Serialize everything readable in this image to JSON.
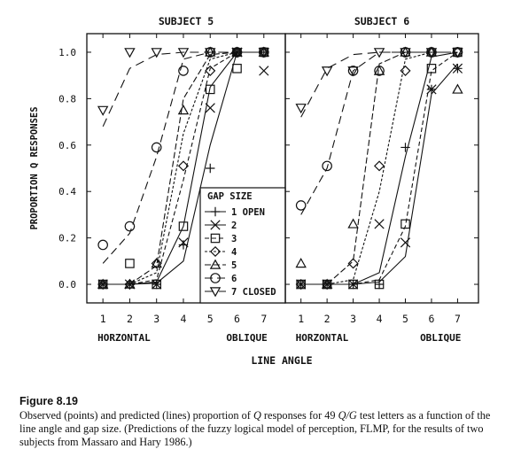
{
  "chart_data": [
    {
      "type": "line",
      "title": "SUBJECT 5",
      "xlabel": "LINE ANGLE",
      "ylabel": "PROPORTION Q RESPONSES",
      "x_ticks": [
        1,
        2,
        3,
        4,
        5,
        6,
        7
      ],
      "x_end_labels": {
        "left": "HORZONTAL",
        "right": "OBLIQUE"
      },
      "y_ticks": [
        "0.0",
        "0.2",
        "0.4",
        "0.6",
        "0.8",
        "1.0"
      ],
      "xlim": [
        0.4,
        7.8
      ],
      "ylim": [
        -0.08,
        1.08
      ],
      "legend": {
        "title": "GAP SIZE",
        "placement": "bottom-right",
        "entries": [
          "1 OPEN",
          "2",
          "3",
          "4",
          "5",
          "6",
          "7 CLOSED"
        ]
      },
      "series": [
        {
          "name": "1",
          "marker": "plus",
          "observed": [
            0.0,
            0.0,
            0.0,
            0.17,
            0.5,
            1.0,
            1.0
          ],
          "predicted": [
            0.0,
            0.0,
            0.005,
            0.1,
            0.6,
            1.0,
            1.0
          ]
        },
        {
          "name": "2",
          "marker": "cross",
          "observed": [
            0.0,
            0.0,
            0.0,
            0.18,
            0.76,
            1.0,
            0.92
          ],
          "predicted": [
            0.0,
            0.0,
            0.01,
            0.25,
            0.85,
            1.0,
            1.0
          ]
        },
        {
          "name": "3",
          "marker": "square",
          "observed": [
            0.0,
            0.09,
            0.0,
            0.25,
            0.84,
            0.93,
            1.0
          ],
          "predicted": [
            0.0,
            0.0,
            0.02,
            0.45,
            0.93,
            1.0,
            1.0
          ]
        },
        {
          "name": "4",
          "marker": "diamond",
          "observed": [
            0.0,
            0.0,
            0.09,
            0.51,
            0.92,
            1.0,
            1.0
          ],
          "predicted": [
            0.0,
            0.0,
            0.05,
            0.65,
            0.97,
            1.0,
            1.0
          ]
        },
        {
          "name": "5",
          "marker": "triangle-up",
          "observed": [
            0.0,
            0.0,
            0.09,
            0.75,
            1.0,
            1.0,
            1.0
          ],
          "predicted": [
            0.0,
            0.0,
            0.08,
            0.8,
            0.99,
            1.0,
            1.0
          ]
        },
        {
          "name": "6",
          "marker": "circle",
          "observed": [
            0.17,
            0.25,
            0.59,
            0.92,
            1.0,
            1.0,
            1.0
          ],
          "predicted": [
            0.09,
            0.22,
            0.55,
            0.97,
            1.0,
            1.0,
            1.0
          ]
        },
        {
          "name": "7",
          "marker": "triangle-down",
          "observed": [
            0.75,
            1.0,
            1.0,
            1.0,
            1.0,
            1.0,
            1.0
          ],
          "predicted": [
            0.68,
            0.93,
            0.99,
            1.0,
            1.0,
            1.0,
            1.0
          ]
        }
      ]
    },
    {
      "type": "line",
      "title": "SUBJECT 6",
      "xlabel": "LINE ANGLE",
      "x_ticks": [
        1,
        2,
        3,
        4,
        5,
        6,
        7
      ],
      "x_end_labels": {
        "left": "HORZONTAL",
        "right": "OBLIQUE"
      },
      "xlim": [
        0.4,
        7.8
      ],
      "ylim": [
        -0.08,
        1.08
      ],
      "series": [
        {
          "name": "1",
          "marker": "plus",
          "observed": [
            0.0,
            0.0,
            0.0,
            0.0,
            0.59,
            0.84,
            0.93
          ],
          "predicted": [
            0.0,
            0.0,
            0.0,
            0.05,
            0.55,
            0.98,
            1.0
          ]
        },
        {
          "name": "2",
          "marker": "cross",
          "observed": [
            0.0,
            0.0,
            0.0,
            0.26,
            0.18,
            0.84,
            0.93
          ],
          "predicted": [
            0.0,
            0.0,
            0.0,
            0.01,
            0.12,
            0.82,
            0.95
          ]
        },
        {
          "name": "3",
          "marker": "square",
          "observed": [
            0.0,
            0.0,
            0.0,
            0.0,
            0.26,
            0.93,
            1.0
          ],
          "predicted": [
            0.0,
            0.0,
            0.0,
            0.02,
            0.25,
            0.92,
            1.0
          ]
        },
        {
          "name": "4",
          "marker": "diamond",
          "observed": [
            0.0,
            0.0,
            0.09,
            0.51,
            0.92,
            1.0,
            1.0
          ],
          "predicted": [
            0.0,
            0.0,
            0.02,
            0.4,
            0.97,
            1.0,
            1.0
          ]
        },
        {
          "name": "5",
          "marker": "triangle-up",
          "observed": [
            0.09,
            0.0,
            0.26,
            0.92,
            1.0,
            1.0,
            0.84
          ],
          "predicted": [
            0.0,
            0.0,
            0.1,
            0.95,
            1.0,
            1.0,
            1.0
          ]
        },
        {
          "name": "6",
          "marker": "circle",
          "observed": [
            0.34,
            0.51,
            0.92,
            0.92,
            1.0,
            1.0,
            1.0
          ],
          "predicted": [
            0.3,
            0.5,
            0.92,
            1.0,
            1.0,
            1.0,
            1.0
          ]
        },
        {
          "name": "7",
          "marker": "triangle-down",
          "observed": [
            0.76,
            0.92,
            0.92,
            1.0,
            1.0,
            1.0,
            1.0
          ],
          "predicted": [
            0.72,
            0.93,
            0.99,
            1.0,
            1.0,
            1.0,
            1.0
          ]
        }
      ]
    }
  ],
  "caption": {
    "figure_label": "Figure 8.19",
    "part1": "Observed (points) and predicted (lines) proportion of ",
    "q1": "Q",
    "part2": " responses for 49 ",
    "q2": "Q/G",
    "part3": " test letters as a function of the line angle and gap size. (Predictions of the fuzzy logical model of perception, FLMP, for the results of two subjects from Massaro and Hary 1986.)"
  }
}
